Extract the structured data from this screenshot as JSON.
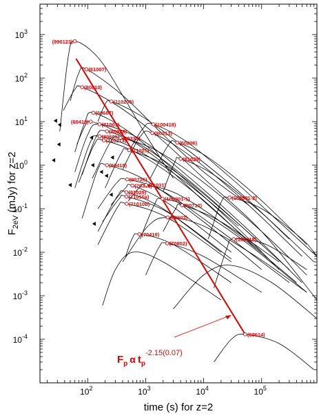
{
  "chart_data": {
    "type": "line",
    "xlabel": "time (s) for z=2",
    "ylabel": "F2eV (mJy)  for z=2",
    "ylabel_main": "F",
    "ylabel_sub": "2eV",
    "ylabel_rest": " (mJy)  for z=2",
    "xscale": "log",
    "yscale": "log",
    "xlim": [
      15,
      900000
    ],
    "ylim": [
      1e-05,
      5000
    ],
    "x_ticks": [
      100,
      1000,
      10000,
      100000
    ],
    "x_tick_labels": [
      "10^2",
      "10^3",
      "10^4",
      "10^5"
    ],
    "y_ticks": [
      0.0001,
      0.001,
      0.01,
      0.1,
      1,
      10,
      100,
      1000
    ],
    "y_tick_labels": [
      "10^-4",
      "10^-3",
      "10^-2",
      "10^-1",
      "10^0",
      "10^1",
      "10^2",
      "10^3"
    ],
    "peaks": [
      {
        "label": "(990123)",
        "t": 60,
        "f": 700
      },
      {
        "label": "(61007)",
        "t": 95,
        "f": 160
      },
      {
        "label": "(80810)",
        "t": 80,
        "f": 62
      },
      {
        "label": "(110205)",
        "t": 255,
        "f": 29
      },
      {
        "label": "(60607)",
        "t": 125,
        "f": 16
      },
      {
        "label": "(60418)",
        "t": 113,
        "f": 10
      },
      {
        "label": "(71003)",
        "t": 160,
        "f": 8.7
      },
      {
        "label": "(100418)",
        "t": 1350,
        "f": 8.7
      },
      {
        "label": "(80928)",
        "t": 215,
        "f": 6.0
      },
      {
        "label": "(90313)",
        "t": 1300,
        "f": 5.5
      },
      {
        "label": "(80605)",
        "t": 160,
        "f": 4.6
      },
      {
        "label": "(80330)",
        "t": 365,
        "f": 4.2
      },
      {
        "label": "(110213)",
        "t": 190,
        "f": 3.7
      },
      {
        "label": "(60206)",
        "t": 3500,
        "f": 3.3
      },
      {
        "label": "(71025)",
        "t": 520,
        "f": 2.2
      },
      {
        "label": "(81029)",
        "t": 4000,
        "f": 1.4
      },
      {
        "label": "(90418)",
        "t": 215,
        "f": 1.0
      },
      {
        "label": "(90726)",
        "t": 480,
        "f": 0.47
      },
      {
        "label": "(70318)",
        "t": 590,
        "f": 0.34
      },
      {
        "label": "(71031)",
        "t": 1020,
        "f": 0.35
      },
      {
        "label": "(91029)",
        "t": 465,
        "f": 0.24
      },
      {
        "label": "(71010a)",
        "t": 465,
        "f": 0.19
      },
      {
        "label": "(100901-1)",
        "t": 1950,
        "f": 0.17
      },
      {
        "label": "(109901-2)",
        "t": 28000,
        "f": 0.18
      },
      {
        "label": "(71010b)",
        "t": 470,
        "f": 0.13
      },
      {
        "label": "(90710)",
        "t": 4250,
        "f": 0.12
      },
      {
        "label": "(80603)",
        "t": 2400,
        "f": 0.063
      },
      {
        "label": "(70419)",
        "t": 780,
        "f": 0.026
      },
      {
        "label": "(70802)",
        "t": 2350,
        "f": 0.016
      },
      {
        "label": "(100418)",
        "t": 33000,
        "f": 0.02
      },
      {
        "label": "(60614)",
        "t": 52000,
        "f": 0.00013
      }
    ],
    "fit_line": {
      "t": [
        63,
        52000
      ],
      "f": [
        280,
        0.00013
      ],
      "index": -2.15,
      "index_err": 0.07
    },
    "fit_label": {
      "F": "F",
      "p": "p",
      "alpha": "α",
      "t": "t",
      "exponent": "-2.15(0.07)"
    },
    "upper_limits": [
      {
        "t": 26,
        "f": 1.3
      },
      {
        "t": 28,
        "f": 10.5
      },
      {
        "t": 32,
        "f": 3.0
      },
      {
        "t": 33,
        "f": 8.5
      },
      {
        "t": 50,
        "f": 0.35
      },
      {
        "t": 117,
        "f": 4.3
      },
      {
        "t": 123,
        "f": 1.0
      },
      {
        "t": 173,
        "f": 0.7
      },
      {
        "t": 212,
        "f": 0.57
      },
      {
        "t": 130,
        "f": 0.045
      },
      {
        "t": 255,
        "f": 0.21
      },
      {
        "t": 268,
        "f": 1.5
      }
    ]
  },
  "curves": [
    [
      [
        33,
        6
      ],
      [
        46,
        300
      ],
      [
        60,
        700
      ],
      [
        150,
        300
      ],
      [
        400,
        40
      ],
      [
        1000,
        5
      ],
      [
        3000,
        0.5
      ]
    ],
    [
      [
        50,
        30
      ],
      [
        70,
        130
      ],
      [
        95,
        160
      ],
      [
        400,
        40
      ],
      [
        2000,
        5
      ],
      [
        10000,
        0.7
      ],
      [
        60000,
        0.12
      ]
    ],
    [
      [
        38,
        18
      ],
      [
        60,
        55
      ],
      [
        80,
        62
      ],
      [
        300,
        25
      ],
      [
        1500,
        5
      ],
      [
        10000,
        0.5
      ],
      [
        100000,
        0.03
      ],
      [
        900000,
        0.0008
      ]
    ],
    [
      [
        150,
        10
      ],
      [
        200,
        25
      ],
      [
        255,
        29
      ],
      [
        800,
        14
      ],
      [
        4000,
        3
      ],
      [
        40000,
        0.25
      ],
      [
        300000,
        0.02
      ]
    ],
    [
      [
        60,
        2
      ],
      [
        90,
        10
      ],
      [
        125,
        16
      ],
      [
        500,
        6
      ],
      [
        3000,
        0.8
      ],
      [
        30000,
        0.05
      ],
      [
        200000,
        0.004
      ]
    ],
    [
      [
        65,
        3
      ],
      [
        90,
        8
      ],
      [
        113,
        10
      ],
      [
        300,
        6
      ],
      [
        1500,
        1.5
      ],
      [
        10000,
        0.15
      ],
      [
        100000,
        0.01
      ]
    ],
    [
      [
        60,
        0.7
      ],
      [
        100,
        5
      ],
      [
        160,
        8.7
      ],
      [
        800,
        4
      ],
      [
        5000,
        0.6
      ],
      [
        50000,
        0.04
      ],
      [
        500000,
        0.002
      ]
    ],
    [
      [
        500,
        2
      ],
      [
        900,
        7
      ],
      [
        1350,
        8.7
      ],
      [
        5000,
        3.5
      ],
      [
        30000,
        0.5
      ],
      [
        200000,
        0.05
      ],
      [
        900000,
        0.008
      ]
    ],
    [
      [
        80,
        0.6
      ],
      [
        140,
        4.5
      ],
      [
        215,
        6.0
      ],
      [
        1000,
        2.5
      ],
      [
        8000,
        0.3
      ],
      [
        100000,
        0.015
      ]
    ],
    [
      [
        400,
        0.8
      ],
      [
        800,
        4.5
      ],
      [
        1300,
        5.5
      ],
      [
        6000,
        1.6
      ],
      [
        50000,
        0.15
      ],
      [
        500000,
        0.008
      ]
    ],
    [
      [
        60,
        0.3
      ],
      [
        110,
        3.3
      ],
      [
        160,
        4.6
      ],
      [
        600,
        2.5
      ],
      [
        4000,
        0.5
      ],
      [
        40000,
        0.04
      ]
    ],
    [
      [
        120,
        0.5
      ],
      [
        250,
        3.5
      ],
      [
        365,
        4.2
      ],
      [
        1500,
        2.2
      ],
      [
        10000,
        0.4
      ],
      [
        100000,
        0.03
      ],
      [
        600000,
        0.003
      ]
    ],
    [
      [
        70,
        0.4
      ],
      [
        130,
        3
      ],
      [
        190,
        3.7
      ],
      [
        900,
        1.6
      ],
      [
        8000,
        0.2
      ],
      [
        80000,
        0.012
      ]
    ],
    [
      [
        1200,
        0.5
      ],
      [
        2500,
        3
      ],
      [
        3500,
        3.3
      ],
      [
        12000,
        1.5
      ],
      [
        80000,
        0.2
      ],
      [
        600000,
        0.015
      ]
    ],
    [
      [
        200,
        0.3
      ],
      [
        380,
        1.9
      ],
      [
        520,
        2.2
      ],
      [
        2500,
        0.9
      ],
      [
        20000,
        0.1
      ],
      [
        300000,
        0.004
      ]
    ],
    [
      [
        2000,
        0.25
      ],
      [
        3200,
        1.2
      ],
      [
        4000,
        1.4
      ],
      [
        15000,
        0.6
      ],
      [
        100000,
        0.08
      ],
      [
        800000,
        0.006
      ]
    ],
    [
      [
        80,
        0.06
      ],
      [
        150,
        0.8
      ],
      [
        215,
        1.0
      ],
      [
        1000,
        0.45
      ],
      [
        10000,
        0.05
      ],
      [
        100000,
        0.004
      ]
    ],
    [
      [
        150,
        0.1
      ],
      [
        320,
        0.4
      ],
      [
        480,
        0.47
      ],
      [
        2000,
        0.25
      ],
      [
        20000,
        0.03
      ],
      [
        300000,
        0.002
      ]
    ],
    [
      [
        250,
        0.12
      ],
      [
        450,
        0.3
      ],
      [
        590,
        0.34
      ],
      [
        2500,
        0.13
      ],
      [
        30000,
        0.01
      ]
    ],
    [
      [
        500,
        0.15
      ],
      [
        800,
        0.32
      ],
      [
        1020,
        0.35
      ],
      [
        4000,
        0.2
      ],
      [
        40000,
        0.025
      ],
      [
        400000,
        0.002
      ]
    ],
    [
      [
        150,
        0.03
      ],
      [
        330,
        0.2
      ],
      [
        465,
        0.24
      ],
      [
        2000,
        0.1
      ],
      [
        20000,
        0.01
      ]
    ],
    [
      [
        180,
        0.05
      ],
      [
        350,
        0.17
      ],
      [
        465,
        0.19
      ],
      [
        2500,
        0.08
      ],
      [
        30000,
        0.007
      ]
    ],
    [
      [
        800,
        0.02
      ],
      [
        1400,
        0.12
      ],
      [
        1950,
        0.17
      ],
      [
        8000,
        0.09
      ],
      [
        60000,
        0.015
      ],
      [
        600000,
        0.0012
      ]
    ],
    [
      [
        12000,
        0.02
      ],
      [
        20000,
        0.14
      ],
      [
        28000,
        0.18
      ],
      [
        100000,
        0.1
      ],
      [
        500000,
        0.02
      ],
      [
        900000,
        0.008
      ]
    ],
    [
      [
        150,
        0.015
      ],
      [
        330,
        0.11
      ],
      [
        470,
        0.13
      ],
      [
        2500,
        0.06
      ],
      [
        30000,
        0.006
      ]
    ],
    [
      [
        2000,
        0.03
      ],
      [
        3300,
        0.1
      ],
      [
        4250,
        0.12
      ],
      [
        20000,
        0.05
      ],
      [
        200000,
        0.006
      ]
    ],
    [
      [
        400,
        0.006
      ],
      [
        1100,
        0.04
      ],
      [
        2400,
        0.063
      ],
      [
        10000,
        0.04
      ],
      [
        80000,
        0.008
      ],
      [
        600000,
        0.0012
      ]
    ],
    [
      [
        450,
        0.008
      ],
      [
        600,
        0.022
      ],
      [
        780,
        0.026
      ],
      [
        3000,
        0.015
      ],
      [
        30000,
        0.002
      ]
    ],
    [
      [
        1000,
        0.003
      ],
      [
        1700,
        0.013
      ],
      [
        2350,
        0.016
      ],
      [
        10000,
        0.008
      ],
      [
        100000,
        0.0012
      ]
    ],
    [
      [
        15000,
        0.0015
      ],
      [
        25000,
        0.012
      ],
      [
        33000,
        0.02
      ],
      [
        120000,
        0.015
      ],
      [
        600000,
        0.004
      ]
    ],
    [
      [
        15000,
        3e-05
      ],
      [
        30000,
        0.0001
      ],
      [
        52000,
        0.00013
      ],
      [
        200000,
        8e-05
      ],
      [
        800000,
        2e-05
      ]
    ],
    [
      [
        180,
        0.0006
      ],
      [
        300,
        0.004
      ],
      [
        600,
        0.01
      ],
      [
        2000,
        0.006
      ],
      [
        20000,
        0.0008
      ]
    ],
    [
      [
        3000,
        0.0005
      ],
      [
        10000,
        0.003
      ],
      [
        30000,
        0.005
      ],
      [
        150000,
        0.002
      ],
      [
        900000,
        0.0003
      ]
    ]
  ]
}
